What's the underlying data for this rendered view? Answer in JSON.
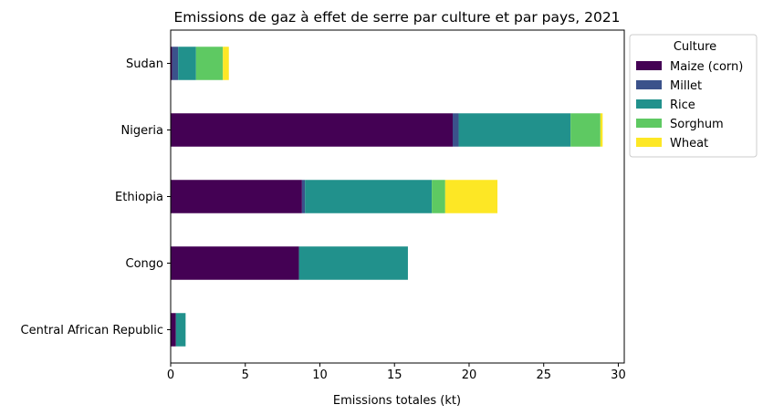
{
  "chart_data": {
    "type": "bar",
    "orientation": "horizontal",
    "stacked": true,
    "title": "Emissions de gaz à effet de serre par culture et par pays, 2021",
    "xlabel": "Emissions totales (kt)",
    "ylabel": "",
    "xlim": [
      0,
      30.4
    ],
    "xticks": [
      0,
      5,
      10,
      15,
      20,
      25,
      30
    ],
    "grid": false,
    "legend_title": "Culture",
    "legend_position": "upper-right-outside",
    "categories": [
      "Central African Republic",
      "Congo",
      "Ethiopia",
      "Nigeria",
      "Sudan"
    ],
    "series": [
      {
        "name": "Maize (corn)",
        "color": "#440154",
        "values": [
          0.35,
          8.6,
          8.8,
          18.9,
          0.1
        ]
      },
      {
        "name": "Millet",
        "color": "#3b528b",
        "values": [
          0.0,
          0.0,
          0.2,
          0.4,
          0.4
        ]
      },
      {
        "name": "Rice",
        "color": "#21918c",
        "values": [
          0.65,
          7.3,
          8.5,
          7.5,
          1.2
        ]
      },
      {
        "name": "Sorghum",
        "color": "#5ec962",
        "values": [
          0.0,
          0.0,
          0.9,
          2.0,
          1.8
        ]
      },
      {
        "name": "Wheat",
        "color": "#fde725",
        "values": [
          0.0,
          0.0,
          3.5,
          0.15,
          0.4
        ]
      }
    ]
  }
}
